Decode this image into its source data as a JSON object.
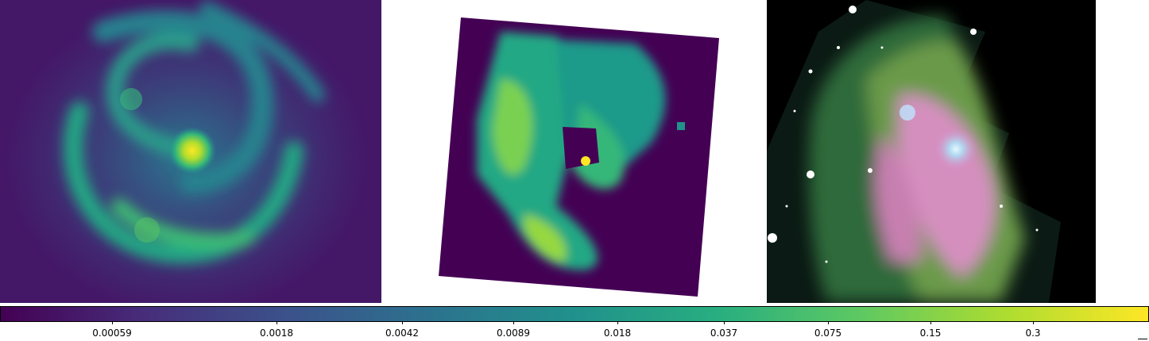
{
  "figure": {
    "panels": [
      {
        "id": "left",
        "content": "viridis intensity map (pixelated spiral galaxy)"
      },
      {
        "id": "middle",
        "content": "masked viridis map, rotated field"
      },
      {
        "id": "right",
        "content": "multi-band color image of spiral galaxy"
      }
    ]
  },
  "colorbar": {
    "colormap": "viridis",
    "scale": "log",
    "colors": [
      "#440154",
      "#472d7b",
      "#3b528b",
      "#2c728e",
      "#21918c",
      "#28ae80",
      "#5ec962",
      "#addc30",
      "#fde725"
    ],
    "ticks": [
      {
        "value": 0.00059,
        "label": "0.00059"
      },
      {
        "value": 0.0018,
        "label": "0.0018"
      },
      {
        "value": 0.0042,
        "label": "0.0042"
      },
      {
        "value": 0.0089,
        "label": "0.0089"
      },
      {
        "value": 0.018,
        "label": "0.018"
      },
      {
        "value": 0.037,
        "label": "0.037"
      },
      {
        "value": 0.075,
        "label": "0.075"
      },
      {
        "value": 0.15,
        "label": "0.15"
      },
      {
        "value": 0.3,
        "label": "0.3"
      }
    ]
  }
}
